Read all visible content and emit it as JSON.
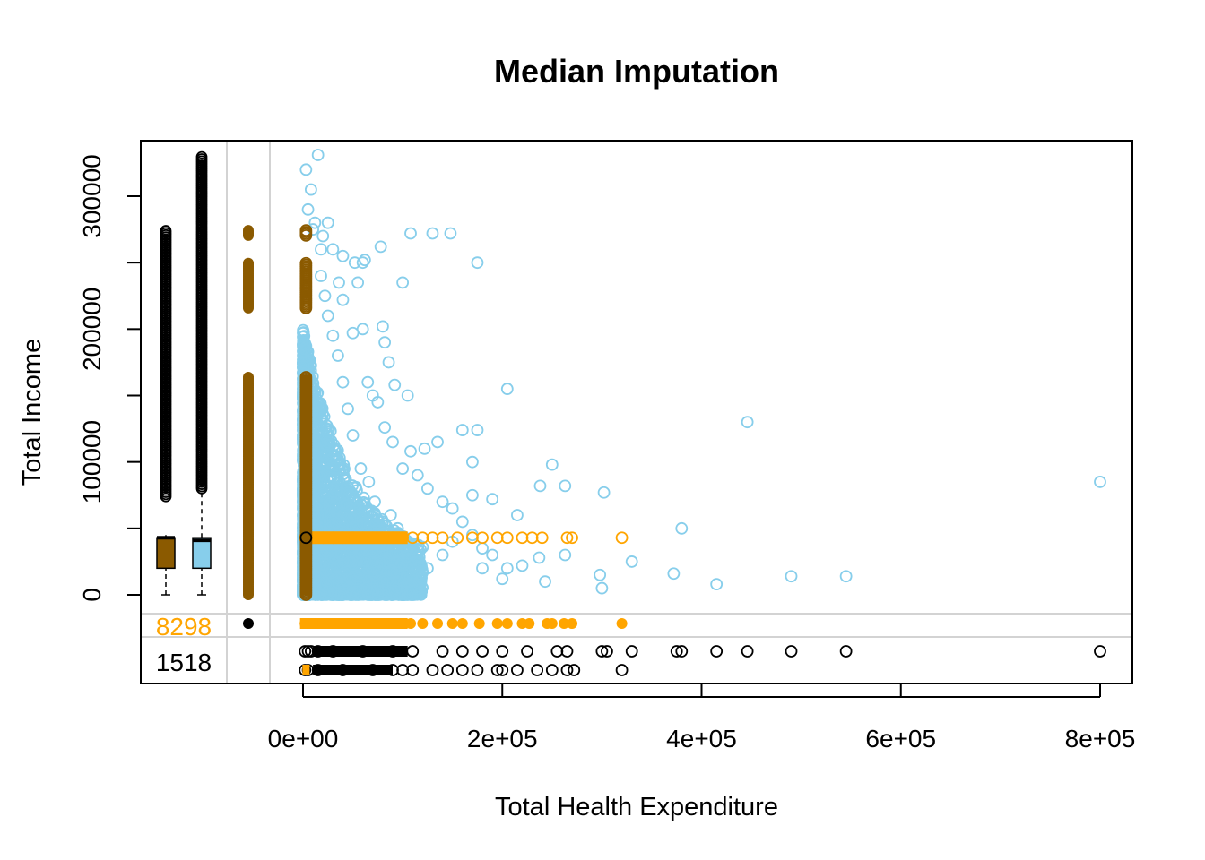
{
  "chart_data": {
    "type": "scatter",
    "title": "Median Imputation",
    "xlabel": "Total Health Expenditure",
    "ylabel": "Total Income",
    "x_ticks": [
      {
        "value": 0,
        "label": "0e+00"
      },
      {
        "value": 200000,
        "label": "2e+05"
      },
      {
        "value": 400000,
        "label": "4e+05"
      },
      {
        "value": 600000,
        "label": "6e+05"
      },
      {
        "value": 800000,
        "label": "8e+05"
      }
    ],
    "y_ticks": [
      {
        "value": 0,
        "label": "0"
      },
      {
        "value": 100000,
        "label": "100000"
      },
      {
        "value": 200000,
        "label": "200000"
      },
      {
        "value": 300000,
        "label": "300000"
      }
    ],
    "xlim": [
      -30000,
      830000
    ],
    "ylim": [
      -10000,
      335000
    ],
    "missing_counts": {
      "income_missing": {
        "label": "8298",
        "color": "#FFA500"
      },
      "both_missing": {
        "label": "1518",
        "color": "#000000"
      }
    },
    "colors": {
      "observed": "#87CEEB",
      "imputed": "#FFA500",
      "imputed_median": "#8B5A00",
      "outline": "#000000",
      "grid": "#D3D3D3"
    },
    "boxplots": [
      {
        "series": "imputed",
        "fill": "#8B5A00",
        "min": 0,
        "q1": 20000,
        "median": 43000,
        "q3": 43000,
        "whisker_high": 45000,
        "outliers_from": 74000,
        "outliers_to": 275000
      },
      {
        "series": "observed",
        "fill": "#87CEEB",
        "min": 0,
        "q1": 20000,
        "median": 41000,
        "q3": 43000,
        "whisker_high": 80000,
        "outliers_from": 80000,
        "outliers_to": 330000
      }
    ],
    "series": [
      {
        "name": "observed",
        "color": "#87CEEB",
        "points": [
          [
            3000,
            320000
          ],
          [
            8000,
            305000
          ],
          [
            15000,
            331000
          ],
          [
            5000,
            290000
          ],
          [
            12000,
            280000
          ],
          [
            20000,
            270000
          ],
          [
            30000,
            260000
          ],
          [
            40000,
            255000
          ],
          [
            52000,
            250000
          ],
          [
            78000,
            262000
          ],
          [
            108000,
            272000
          ],
          [
            130000,
            272000
          ],
          [
            148000,
            272000
          ],
          [
            175000,
            250000
          ],
          [
            100000,
            235000
          ],
          [
            60000,
            200000
          ],
          [
            82000,
            190000
          ],
          [
            86000,
            175000
          ],
          [
            92000,
            158000
          ],
          [
            105000,
            150000
          ],
          [
            205000,
            155000
          ],
          [
            446000,
            130000
          ],
          [
            175000,
            124000
          ],
          [
            160000,
            124000
          ],
          [
            135000,
            115000
          ],
          [
            122000,
            110000
          ],
          [
            108000,
            108000
          ],
          [
            170000,
            100000
          ],
          [
            250000,
            98000
          ],
          [
            238000,
            82000
          ],
          [
            263000,
            82000
          ],
          [
            302000,
            77000
          ],
          [
            170000,
            75000
          ],
          [
            190000,
            72000
          ],
          [
            215000,
            60000
          ],
          [
            380000,
            50000
          ],
          [
            330000,
            25000
          ],
          [
            263000,
            30000
          ],
          [
            237000,
            28000
          ],
          [
            243000,
            10000
          ],
          [
            298000,
            15000
          ],
          [
            372000,
            16000
          ],
          [
            415000,
            8000
          ],
          [
            490000,
            14000
          ],
          [
            545000,
            14000
          ],
          [
            800000,
            85000
          ],
          [
            300000,
            5000
          ],
          [
            180000,
            20000
          ],
          [
            200000,
            12000
          ],
          [
            150000,
            40000
          ],
          [
            140000,
            30000
          ],
          [
            125000,
            20000
          ],
          [
            110000,
            15000
          ],
          [
            95000,
            50000
          ],
          [
            88000,
            60000
          ],
          [
            72000,
            70000
          ],
          [
            66000,
            85000
          ],
          [
            58000,
            95000
          ],
          [
            50000,
            120000
          ],
          [
            45000,
            140000
          ],
          [
            40000,
            160000
          ],
          [
            35000,
            180000
          ],
          [
            30000,
            195000
          ],
          [
            25000,
            210000
          ],
          [
            22000,
            225000
          ],
          [
            18000,
            240000
          ],
          [
            18000,
            260000
          ],
          [
            10000,
            275000
          ],
          [
            25000,
            280000
          ],
          [
            60000,
            250000
          ],
          [
            62000,
            252000
          ],
          [
            55000,
            235000
          ],
          [
            36000,
            235000
          ],
          [
            40000,
            222000
          ],
          [
            80000,
            202000
          ],
          [
            50000,
            197000
          ],
          [
            70000,
            150000
          ],
          [
            75000,
            145000
          ],
          [
            65000,
            160000
          ],
          [
            82000,
            126000
          ],
          [
            90000,
            115000
          ],
          [
            100000,
            95000
          ],
          [
            115000,
            90000
          ],
          [
            125000,
            80000
          ],
          [
            140000,
            70000
          ],
          [
            150000,
            65000
          ],
          [
            160000,
            55000
          ],
          [
            170000,
            45000
          ],
          [
            180000,
            35000
          ],
          [
            190000,
            30000
          ],
          [
            205000,
            20000
          ],
          [
            220000,
            22000
          ]
        ]
      },
      {
        "name": "imputed",
        "color": "#FFA500",
        "y_value": 43000,
        "x_values": [
          2000,
          10000,
          20000,
          30000,
          40000,
          50000,
          60000,
          70000,
          80000,
          90000,
          100000,
          110000,
          120000,
          130000,
          140000,
          155000,
          170000,
          180000,
          195000,
          205000,
          220000,
          230000,
          240000,
          265000,
          270000,
          320000
        ]
      }
    ],
    "margin_points": {
      "income_missing_x_filled": [
        2000,
        10000,
        20000,
        30000,
        40000,
        50000,
        60000,
        70000,
        80000,
        90000,
        100000,
        108000,
        120000,
        135000,
        150000,
        160000,
        177000,
        195000,
        205000,
        220000,
        227000,
        245000,
        250000,
        262000,
        270000,
        320000
      ],
      "row_top_x_open": [
        2000,
        5000,
        8000,
        15000,
        30000,
        60000,
        90000,
        110000,
        140000,
        160000,
        180000,
        200000,
        225000,
        255000,
        265000,
        300000,
        305000,
        330000,
        375000,
        380000,
        415000,
        446000,
        490000,
        545000,
        800000
      ],
      "row_bottom_x_open": [
        2000,
        5000,
        15000,
        40000,
        70000,
        90000,
        100000,
        110000,
        130000,
        145000,
        160000,
        175000,
        195000,
        200000,
        215000,
        235000,
        250000,
        265000,
        272000,
        320000
      ]
    }
  }
}
